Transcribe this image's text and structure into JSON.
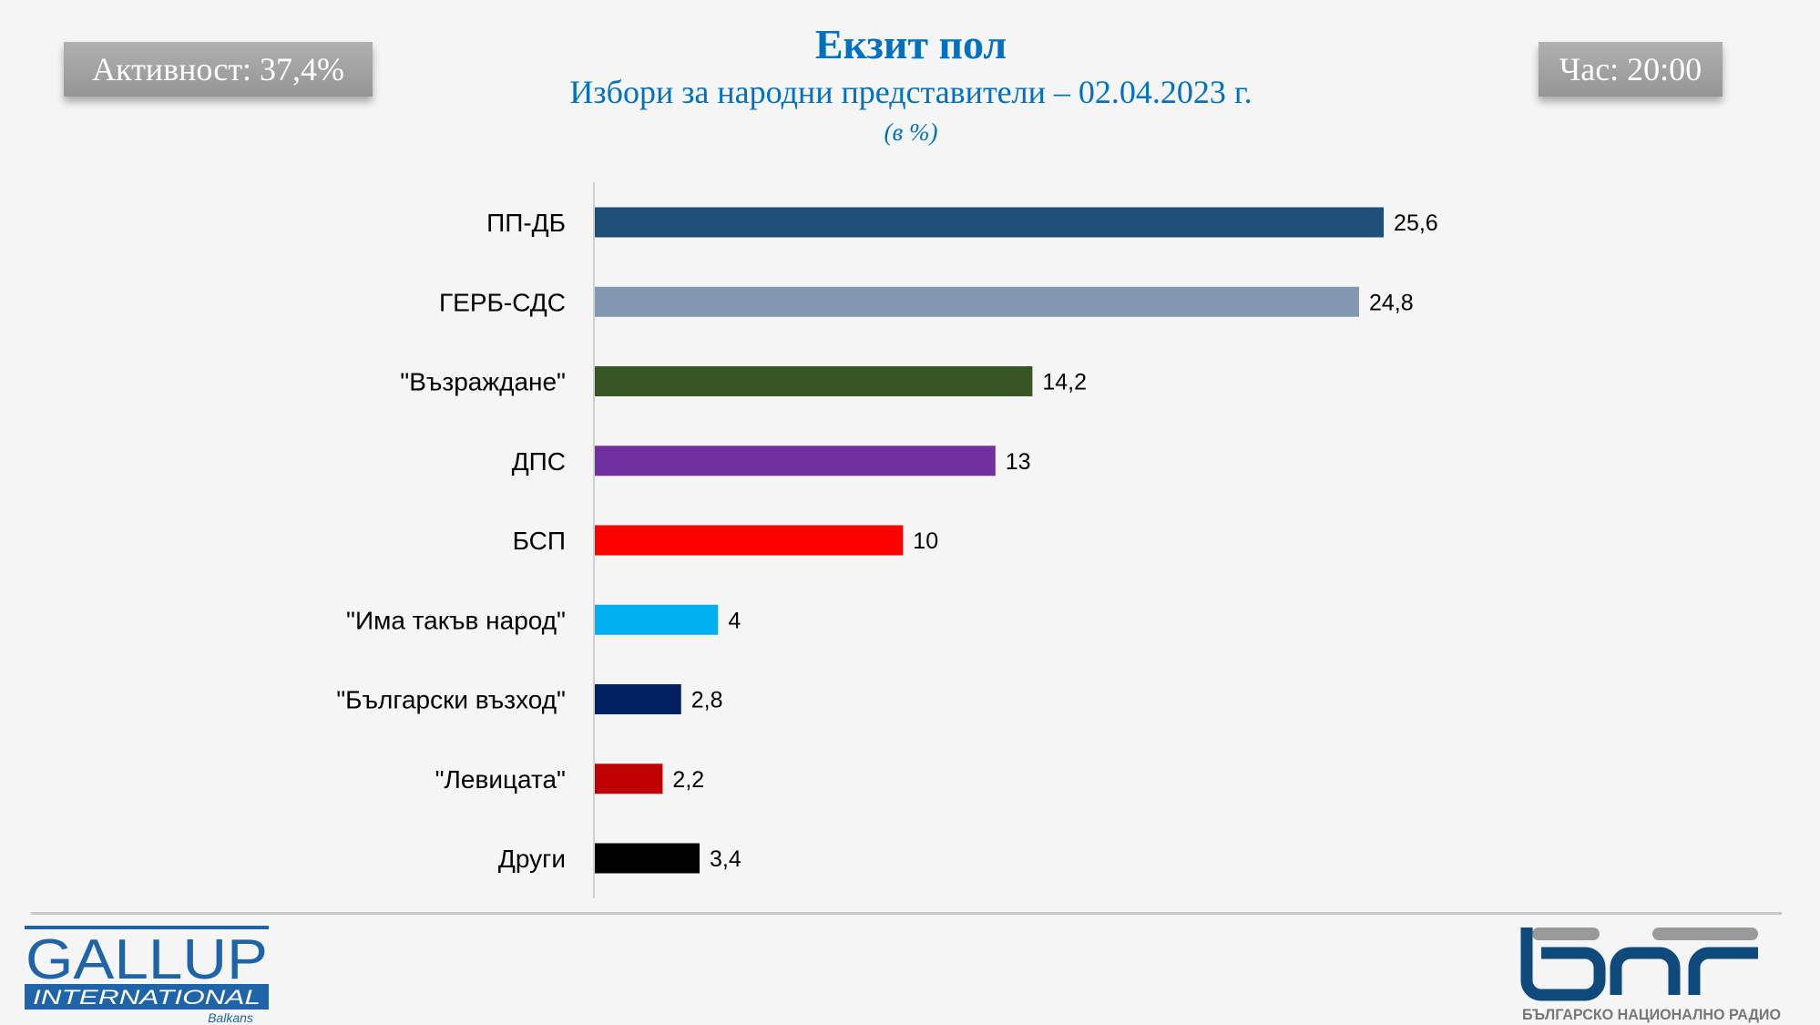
{
  "header": {
    "turnout": "Активност: 37,4%",
    "time": "Час: 20:00"
  },
  "chart_data": {
    "type": "bar",
    "orientation": "horizontal",
    "title": "Екзит пол",
    "subtitle": "Избори за народни представители – 02.04.2023 г.",
    "unit": "(в %)",
    "categories": [
      "ПП-ДБ",
      "ГЕРБ-СДС",
      "\"Възраждане\"",
      "ДПС",
      "БСП",
      "\"Има такъв народ\"",
      "\"Български възход\"",
      "\"Левицата\"",
      "Други"
    ],
    "values": [
      25.6,
      24.8,
      14.2,
      13,
      10,
      4,
      2.8,
      2.2,
      3.4
    ],
    "data_labels": [
      "25,6",
      "24,8",
      "14,2",
      "13",
      "10",
      "4",
      "2,8",
      "2,2",
      "3,4"
    ],
    "colors": [
      "#1f4e79",
      "#8497b0",
      "#375623",
      "#7030a0",
      "#ff0000",
      "#00b0f0",
      "#002060",
      "#c00000",
      "#000000"
    ],
    "xlim": [
      0,
      30
    ],
    "grid": false
  },
  "logos": {
    "gallup": {
      "line1": "GALLUP",
      "line2": "INTERNATIONAL",
      "line3": "Balkans",
      "color": "#1f64a8"
    },
    "bnr": {
      "mark": "бнр",
      "text": "БЪЛГАРСКО НАЦИОНАЛНО РАДИО",
      "color": "#0f4a7c"
    }
  }
}
